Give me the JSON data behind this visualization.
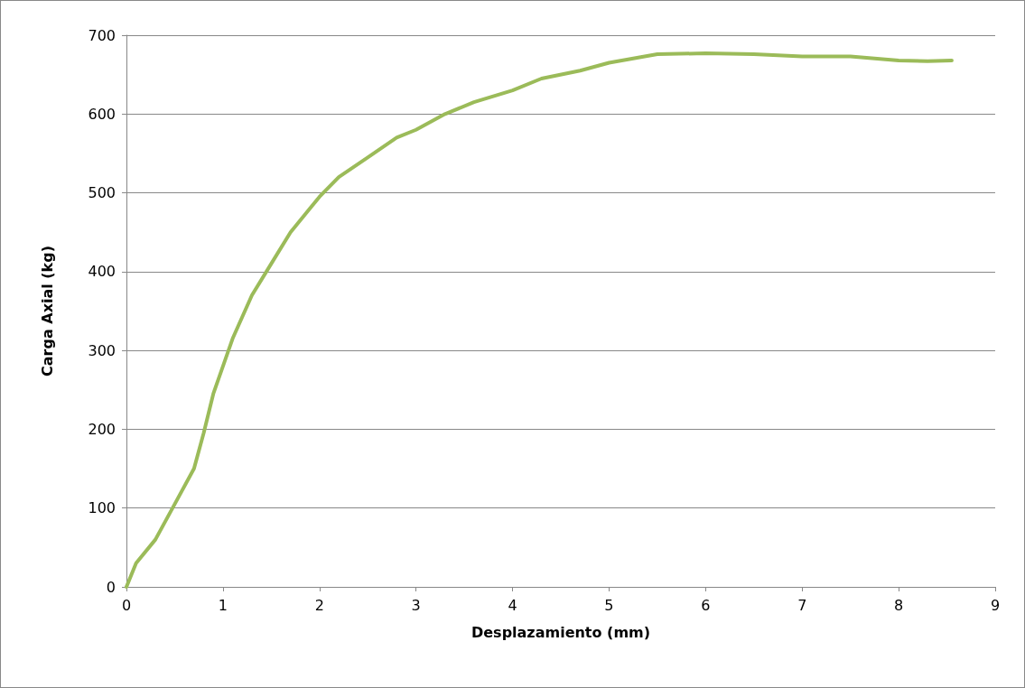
{
  "chart_data": {
    "type": "line",
    "xlabel": "Desplazamiento (mm)",
    "ylabel": "Carga Axial (kg)",
    "xlim": [
      0,
      9
    ],
    "xticks": [
      0,
      1,
      2,
      3,
      4,
      5,
      6,
      7,
      8,
      9
    ],
    "ylim": [
      0,
      700
    ],
    "yticks": [
      0,
      100,
      200,
      300,
      400,
      500,
      600,
      700
    ],
    "grid": "y",
    "marker": "none",
    "line_style": "solid",
    "series": [
      {
        "color": "#9bbb59",
        "x": [
          0,
          0.1,
          0.3,
          0.5,
          0.7,
          0.8,
          0.9,
          1.0,
          1.1,
          1.3,
          1.5,
          1.7,
          1.9,
          2.0,
          2.2,
          2.5,
          2.8,
          3.0,
          3.3,
          3.6,
          4.0,
          4.3,
          4.7,
          5.0,
          5.5,
          6.0,
          6.5,
          7.0,
          7.5,
          8.0,
          8.3,
          8.55
        ],
        "values": [
          0,
          30,
          60,
          105,
          150,
          195,
          245,
          280,
          315,
          370,
          410,
          450,
          480,
          495,
          520,
          545,
          570,
          580,
          600,
          615,
          630,
          645,
          655,
          665,
          676,
          677,
          676,
          673,
          673,
          668,
          667,
          668
        ]
      }
    ]
  }
}
